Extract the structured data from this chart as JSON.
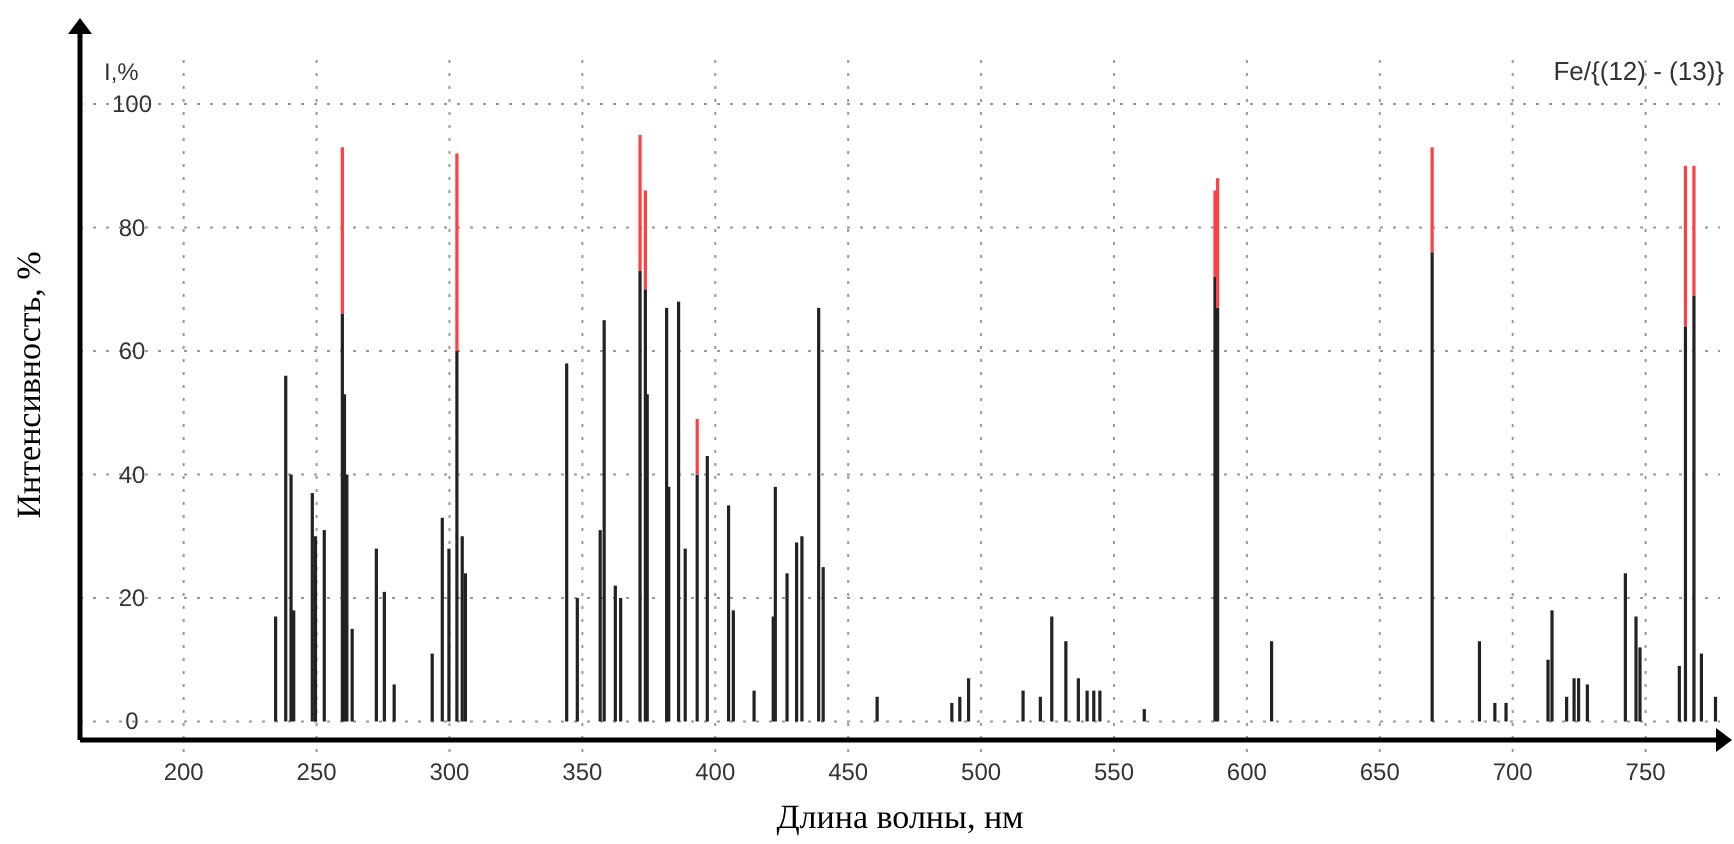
{
  "chart_data": {
    "type": "bar",
    "stacked": true,
    "xlabel": "Длина волны, нм",
    "ylabel": "Интенсивность, %",
    "annotations": [
      "I,%",
      "Fe/{(12) - (13)}"
    ],
    "xlim": [
      161,
      778
    ],
    "ylim": [
      -3,
      112
    ],
    "xticks": [
      200,
      250,
      300,
      350,
      400,
      450,
      500,
      550,
      600,
      650,
      700,
      750
    ],
    "yticks": [
      0,
      20,
      40,
      60,
      80,
      100
    ],
    "grid": true,
    "x": [
      234.6,
      238.4,
      240.4,
      241.4,
      248.4,
      249.6,
      252.9,
      259.7,
      260.5,
      261.4,
      263.4,
      272.5,
      275.5,
      279.2,
      293.5,
      297.3,
      299.8,
      302.8,
      304.8,
      306,
      344.1,
      348.1,
      356.7,
      358.2,
      362.4,
      364.4,
      371.7,
      373.7,
      374.4,
      381.7,
      382.5,
      386.2,
      388.7,
      393.2,
      397,
      405,
      406.8,
      414.6,
      421.8,
      422.6,
      427,
      430.6,
      432.6,
      438.9,
      440.6,
      460.9,
      489,
      492,
      495.3,
      515.8,
      522.3,
      526.6,
      531.9,
      536.6,
      539.9,
      542.4,
      544.7,
      561.4,
      588,
      589,
      609.3,
      669.7,
      687.5,
      693.3,
      697.5,
      713.3,
      714.8,
      720.3,
      723.1,
      724.8,
      728.1,
      742.4,
      746.4,
      747.9,
      762.7,
      765,
      768.2,
      771,
      776.3
    ],
    "series": [
      {
        "color": "#222222",
        "values": [
          17,
          56,
          40,
          18,
          37,
          30,
          31,
          66,
          53,
          40,
          15,
          28,
          21,
          6,
          11,
          33,
          28,
          60,
          30,
          24,
          58,
          20,
          31,
          65,
          22,
          20,
          73,
          70,
          53,
          67,
          38,
          68,
          28,
          40,
          43,
          35,
          18,
          5,
          17,
          38,
          24,
          29,
          30,
          67,
          25,
          4,
          3,
          4,
          7,
          5,
          4,
          17,
          13,
          7,
          5,
          5,
          5,
          2,
          72,
          67,
          13,
          76,
          13,
          3,
          3,
          10,
          18,
          4,
          7,
          7,
          6,
          24,
          17,
          12,
          9,
          64,
          69,
          11,
          4
        ]
      },
      {
        "color": "#ff4040",
        "values": [
          null,
          null,
          null,
          null,
          null,
          null,
          null,
          27,
          null,
          null,
          null,
          null,
          null,
          null,
          null,
          null,
          null,
          32,
          null,
          null,
          null,
          null,
          null,
          null,
          null,
          null,
          22,
          16,
          null,
          null,
          null,
          null,
          null,
          9,
          null,
          null,
          null,
          null,
          null,
          null,
          null,
          null,
          null,
          null,
          null,
          null,
          null,
          null,
          null,
          null,
          null,
          null,
          null,
          null,
          null,
          null,
          null,
          null,
          14,
          21,
          null,
          17,
          null,
          null,
          null,
          null,
          null,
          null,
          null,
          null,
          null,
          null,
          null,
          null,
          null,
          26,
          21,
          null,
          null
        ]
      }
    ]
  }
}
